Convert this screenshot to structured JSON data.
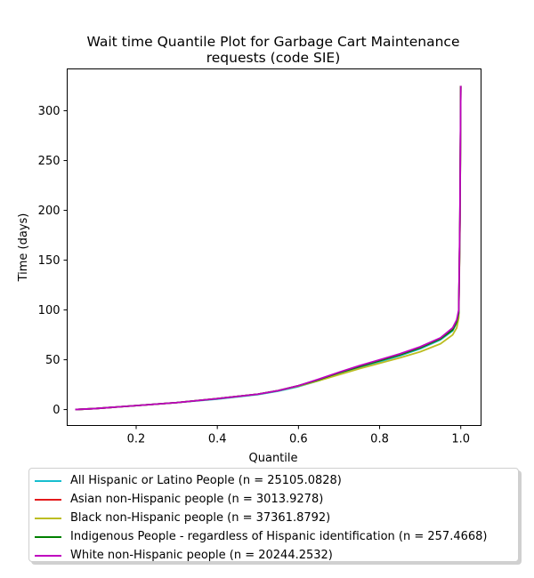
{
  "chart_data": {
    "type": "line",
    "title": [
      "Wait time Quantile Plot for Garbage Cart Maintenance",
      "requests (code SIE)"
    ],
    "xlabel": "Quantile",
    "ylabel": "Time (days)",
    "xlim": [
      0.03,
      1.05
    ],
    "ylim": [
      -16,
      342
    ],
    "xticks": [
      0.2,
      0.4,
      0.6,
      0.8,
      1.0
    ],
    "xtick_labels": [
      "0.2",
      "0.4",
      "0.6",
      "0.8",
      "1.0"
    ],
    "yticks": [
      0,
      50,
      100,
      150,
      200,
      250,
      300
    ],
    "ytick_labels": [
      "0",
      "50",
      "100",
      "150",
      "200",
      "250",
      "300"
    ],
    "grid": false,
    "legend_placement": "below",
    "series": [
      {
        "name": "All Hispanic or Latino People (n = 25105.0828)",
        "color": "#17becf",
        "x": [
          0.05,
          0.1,
          0.2,
          0.3,
          0.4,
          0.5,
          0.55,
          0.6,
          0.65,
          0.7,
          0.75,
          0.8,
          0.85,
          0.9,
          0.95,
          0.98,
          0.99,
          0.995,
          0.998,
          1.0
        ],
        "y": [
          0,
          1,
          4,
          7,
          10.5,
          15,
          18.5,
          23,
          29,
          36,
          42,
          48,
          54,
          61,
          70,
          79,
          87,
          96,
          190,
          325
        ]
      },
      {
        "name": "Asian non-Hispanic people (n = 3013.9278)",
        "color": "#e31a1c",
        "x": [
          0.05,
          0.1,
          0.2,
          0.3,
          0.4,
          0.5,
          0.55,
          0.6,
          0.65,
          0.7,
          0.75,
          0.8,
          0.85,
          0.9,
          0.95,
          0.98,
          0.99,
          0.995,
          0.998,
          1.0
        ],
        "y": [
          0,
          1,
          4,
          7,
          11,
          15.5,
          19,
          24,
          30,
          37,
          43,
          49,
          55,
          62,
          71,
          80,
          88,
          97,
          190,
          325
        ]
      },
      {
        "name": "Black non-Hispanic people (n = 37361.8792)",
        "color": "#bcbd22",
        "x": [
          0.05,
          0.1,
          0.2,
          0.3,
          0.4,
          0.5,
          0.55,
          0.6,
          0.65,
          0.7,
          0.75,
          0.8,
          0.85,
          0.9,
          0.95,
          0.98,
          0.99,
          0.995,
          0.998,
          1.0
        ],
        "y": [
          0,
          1,
          4,
          7,
          11,
          15.5,
          19,
          23.5,
          29,
          35,
          41,
          46.5,
          52,
          58,
          66,
          75,
          82,
          92,
          180,
          325
        ]
      },
      {
        "name": "Indigenous People - regardless of Hispanic identification (n = 257.4668)",
        "color": "#008000",
        "x": [
          0.05,
          0.1,
          0.2,
          0.3,
          0.4,
          0.5,
          0.55,
          0.6,
          0.65,
          0.7,
          0.75,
          0.8,
          0.85,
          0.9,
          0.95,
          0.98,
          0.99,
          0.995,
          0.998,
          1.0
        ],
        "y": [
          0,
          1,
          4,
          7,
          11,
          15.5,
          19,
          24,
          30,
          37,
          43,
          49,
          55,
          62,
          71,
          80,
          88,
          97,
          190,
          325
        ]
      },
      {
        "name": "White non-Hispanic people (n = 20244.2532)",
        "color": "#bf00bf",
        "x": [
          0.05,
          0.1,
          0.2,
          0.3,
          0.4,
          0.5,
          0.55,
          0.6,
          0.65,
          0.7,
          0.75,
          0.8,
          0.85,
          0.9,
          0.95,
          0.98,
          0.99,
          0.995,
          0.998,
          1.0
        ],
        "y": [
          0,
          1,
          4,
          7,
          11,
          15.5,
          19,
          24,
          30.5,
          37.5,
          44,
          50,
          56,
          63,
          72,
          82,
          90,
          100,
          195,
          325
        ]
      }
    ]
  }
}
